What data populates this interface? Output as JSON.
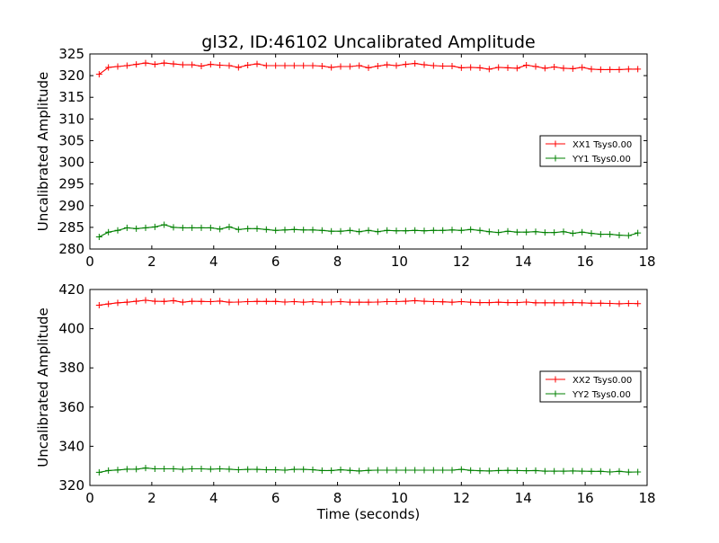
{
  "title": "gl32, ID:46102 Uncalibrated Amplitude",
  "xlabel": "Time (seconds)",
  "chart_data": [
    {
      "type": "line",
      "title": "gl32, ID:46102 Uncalibrated Amplitude",
      "xlabel": "",
      "ylabel": "Uncalibrated Amplitude",
      "xlim": [
        0,
        18
      ],
      "ylim": [
        280,
        325
      ],
      "xticks": [
        0,
        2,
        4,
        6,
        8,
        10,
        12,
        14,
        16,
        18
      ],
      "yticks": [
        280,
        285,
        290,
        295,
        300,
        305,
        310,
        315,
        320,
        325
      ],
      "grid": false,
      "legend_position": "right",
      "x": [
        0.3,
        0.6,
        0.9,
        1.2,
        1.5,
        1.8,
        2.1,
        2.4,
        2.7,
        3.0,
        3.3,
        3.6,
        3.9,
        4.2,
        4.5,
        4.8,
        5.1,
        5.4,
        5.7,
        6.0,
        6.3,
        6.6,
        6.9,
        7.2,
        7.5,
        7.8,
        8.1,
        8.4,
        8.7,
        9.0,
        9.3,
        9.6,
        9.9,
        10.2,
        10.5,
        10.8,
        11.1,
        11.4,
        11.7,
        12.0,
        12.3,
        12.6,
        12.9,
        13.2,
        13.5,
        13.8,
        14.1,
        14.4,
        14.7,
        15.0,
        15.3,
        15.6,
        15.9,
        16.2,
        16.5,
        16.8,
        17.1,
        17.4,
        17.7
      ],
      "series": [
        {
          "name": "XX1 Tsys0.00",
          "color": "#ff0000",
          "values": [
            320.3,
            321.9,
            322.1,
            322.3,
            322.6,
            322.9,
            322.6,
            322.9,
            322.7,
            322.5,
            322.5,
            322.2,
            322.6,
            322.4,
            322.3,
            321.9,
            322.4,
            322.7,
            322.3,
            322.3,
            322.3,
            322.3,
            322.3,
            322.3,
            322.2,
            321.9,
            322.1,
            322.1,
            322.3,
            321.8,
            322.2,
            322.5,
            322.3,
            322.6,
            322.8,
            322.5,
            322.3,
            322.2,
            322.2,
            321.8,
            321.9,
            321.8,
            321.5,
            321.9,
            321.8,
            321.7,
            322.4,
            322.1,
            321.7,
            322.0,
            321.7,
            321.6,
            321.9,
            321.5,
            321.4,
            321.4,
            321.4,
            321.5,
            321.5
          ]
        },
        {
          "name": "YY1 Tsys0.00",
          "color": "#008000",
          "values": [
            282.8,
            283.9,
            284.3,
            284.9,
            284.7,
            284.9,
            285.1,
            285.6,
            285.0,
            284.9,
            284.9,
            284.9,
            284.9,
            284.6,
            285.1,
            284.5,
            284.7,
            284.7,
            284.5,
            284.3,
            284.4,
            284.5,
            284.4,
            284.4,
            284.3,
            284.1,
            284.1,
            284.3,
            284.0,
            284.3,
            284.0,
            284.3,
            284.2,
            284.2,
            284.3,
            284.2,
            284.3,
            284.3,
            284.4,
            284.3,
            284.5,
            284.3,
            284.0,
            283.8,
            284.1,
            283.9,
            283.9,
            284.0,
            283.8,
            283.8,
            284.0,
            283.6,
            283.9,
            283.6,
            283.4,
            283.4,
            283.2,
            283.1,
            283.7
          ]
        }
      ]
    },
    {
      "type": "line",
      "title": "",
      "xlabel": "Time (seconds)",
      "ylabel": "Uncalibrated Amplitude",
      "xlim": [
        0,
        18
      ],
      "ylim": [
        320,
        420
      ],
      "xticks": [
        0,
        2,
        4,
        6,
        8,
        10,
        12,
        14,
        16,
        18
      ],
      "yticks": [
        320,
        340,
        360,
        380,
        400,
        420
      ],
      "grid": false,
      "legend_position": "right",
      "x": [
        0.3,
        0.6,
        0.9,
        1.2,
        1.5,
        1.8,
        2.1,
        2.4,
        2.7,
        3.0,
        3.3,
        3.6,
        3.9,
        4.2,
        4.5,
        4.8,
        5.1,
        5.4,
        5.7,
        6.0,
        6.3,
        6.6,
        6.9,
        7.2,
        7.5,
        7.8,
        8.1,
        8.4,
        8.7,
        9.0,
        9.3,
        9.6,
        9.9,
        10.2,
        10.5,
        10.8,
        11.1,
        11.4,
        11.7,
        12.0,
        12.3,
        12.6,
        12.9,
        13.2,
        13.5,
        13.8,
        14.1,
        14.4,
        14.7,
        15.0,
        15.3,
        15.6,
        15.9,
        16.2,
        16.5,
        16.8,
        17.1,
        17.4,
        17.7
      ],
      "series": [
        {
          "name": "XX2 Tsys0.00",
          "color": "#ff0000",
          "values": [
            412.0,
            412.6,
            413.2,
            413.5,
            414.0,
            414.5,
            414.0,
            413.9,
            414.3,
            413.5,
            414.0,
            413.9,
            413.8,
            414.1,
            413.5,
            413.6,
            413.8,
            413.9,
            413.9,
            413.9,
            413.6,
            413.8,
            413.5,
            413.8,
            413.5,
            413.6,
            413.8,
            413.5,
            413.5,
            413.5,
            413.6,
            413.8,
            413.8,
            414.0,
            414.3,
            414.0,
            413.8,
            413.7,
            413.5,
            413.8,
            413.5,
            413.3,
            413.3,
            413.5,
            413.3,
            413.3,
            413.6,
            413.2,
            413.2,
            413.2,
            413.2,
            413.3,
            413.2,
            413.0,
            413.0,
            412.9,
            412.7,
            412.9,
            412.8
          ]
        },
        {
          "name": "YY2 Tsys0.00",
          "color": "#008000",
          "values": [
            326.7,
            327.6,
            327.9,
            328.3,
            328.3,
            328.9,
            328.5,
            328.5,
            328.5,
            328.2,
            328.5,
            328.5,
            328.3,
            328.5,
            328.3,
            328.0,
            328.2,
            328.2,
            328.0,
            328.0,
            327.8,
            328.2,
            328.2,
            328.0,
            327.6,
            327.6,
            328.0,
            327.7,
            327.4,
            327.7,
            327.8,
            327.8,
            327.8,
            327.8,
            327.8,
            327.8,
            327.8,
            327.8,
            327.8,
            328.2,
            327.7,
            327.5,
            327.4,
            327.6,
            327.7,
            327.6,
            327.5,
            327.6,
            327.3,
            327.3,
            327.3,
            327.4,
            327.3,
            327.2,
            327.2,
            326.9,
            327.2,
            326.8,
            326.9
          ]
        }
      ]
    }
  ]
}
